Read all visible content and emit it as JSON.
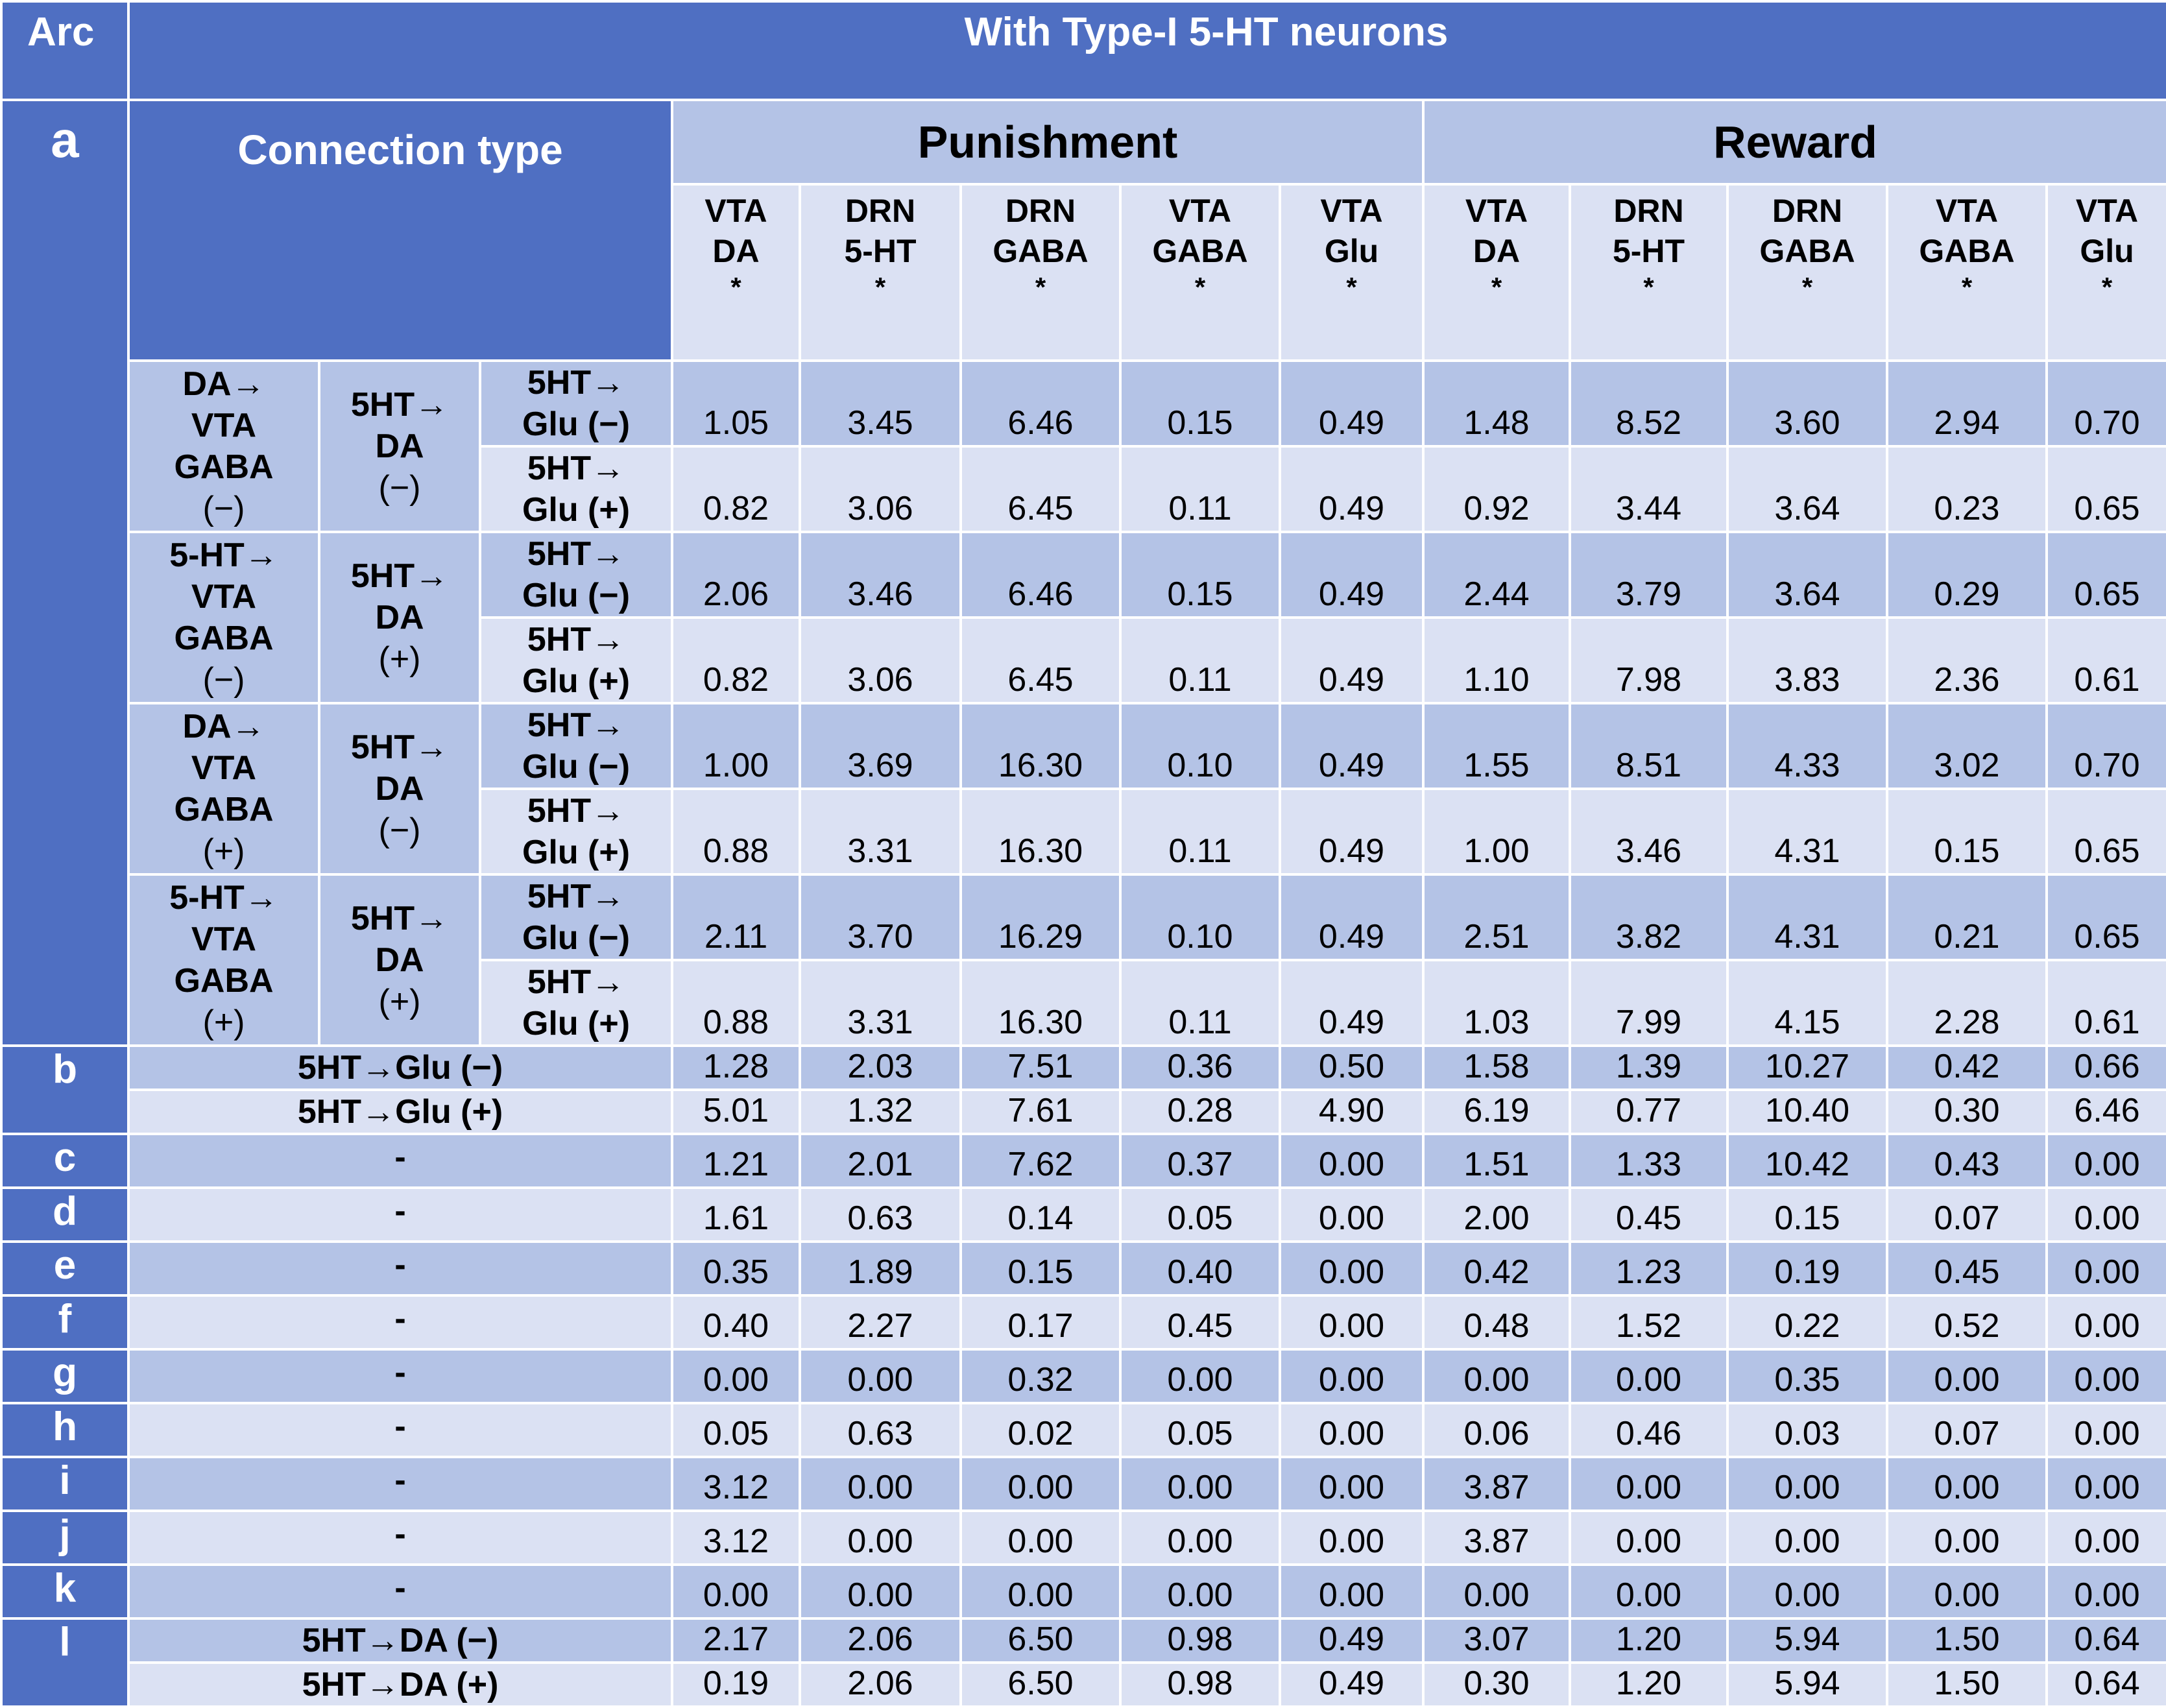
{
  "header": {
    "arc": "Arc",
    "title": "With Type-I 5-HT neurons",
    "section_a": "a",
    "connection_type": "Connection type",
    "punishment": "Punishment",
    "reward": "Reward",
    "columns": [
      {
        "l1": "VTA",
        "l2": "DA",
        "star": "*"
      },
      {
        "l1": "DRN",
        "l2": "5-HT",
        "star": "*"
      },
      {
        "l1": "DRN",
        "l2": "GABA",
        "star": "*"
      },
      {
        "l1": "VTA",
        "l2": "GABA",
        "star": "*"
      },
      {
        "l1": "VTA",
        "l2": "Glu",
        "star": "*"
      },
      {
        "l1": "VTA",
        "l2": "DA",
        "star": "*"
      },
      {
        "l1": "DRN",
        "l2": "5-HT",
        "star": "*"
      },
      {
        "l1": "DRN",
        "l2": "GABA",
        "star": "*"
      },
      {
        "l1": "VTA",
        "l2": "GABA",
        "star": "*"
      },
      {
        "l1": "VTA",
        "l2": "Glu",
        "star": "*"
      }
    ]
  },
  "section_a_groups": [
    {
      "c1": [
        "DA→",
        "VTA",
        "GABA",
        "(−)"
      ],
      "c2": [
        "5HT→",
        "DA",
        "(−)"
      ],
      "rows": [
        {
          "c3": [
            "5HT→",
            "Glu (−)"
          ],
          "values": [
            "1.05",
            "3.45",
            "6.46",
            "0.15",
            "0.49",
            "1.48",
            "8.52",
            "3.60",
            "2.94",
            "0.70"
          ]
        },
        {
          "c3": [
            "5HT→",
            "Glu (+)"
          ],
          "values": [
            "0.82",
            "3.06",
            "6.45",
            "0.11",
            "0.49",
            "0.92",
            "3.44",
            "3.64",
            "0.23",
            "0.65"
          ]
        }
      ]
    },
    {
      "c1": [
        "5-HT→",
        "VTA",
        "GABA",
        "(−)"
      ],
      "c2": [
        "5HT→",
        "DA",
        "(+)"
      ],
      "rows": [
        {
          "c3": [
            "5HT→",
            "Glu (−)"
          ],
          "values": [
            "2.06",
            "3.46",
            "6.46",
            "0.15",
            "0.49",
            "2.44",
            "3.79",
            "3.64",
            "0.29",
            "0.65"
          ]
        },
        {
          "c3": [
            "5HT→",
            "Glu (+)"
          ],
          "values": [
            "0.82",
            "3.06",
            "6.45",
            "0.11",
            "0.49",
            "1.10",
            "7.98",
            "3.83",
            "2.36",
            "0.61"
          ]
        }
      ]
    },
    {
      "c1": [
        "DA→",
        "VTA",
        "GABA",
        "(+)"
      ],
      "c2": [
        "5HT→",
        "DA",
        "(−)"
      ],
      "rows": [
        {
          "c3": [
            "5HT→",
            "Glu (−)"
          ],
          "values": [
            "1.00",
            "3.69",
            "16.30",
            "0.10",
            "0.49",
            "1.55",
            "8.51",
            "4.33",
            "3.02",
            "0.70"
          ]
        },
        {
          "c3": [
            "5HT→",
            "Glu (+)"
          ],
          "values": [
            "0.88",
            "3.31",
            "16.30",
            "0.11",
            "0.49",
            "1.00",
            "3.46",
            "4.31",
            "0.15",
            "0.65"
          ]
        }
      ]
    },
    {
      "c1": [
        "5-HT→",
        "VTA",
        "GABA",
        "(+)"
      ],
      "c2": [
        "5HT→",
        "DA",
        "(+)"
      ],
      "rows": [
        {
          "c3": [
            "5HT→",
            "Glu (−)"
          ],
          "values": [
            "2.11",
            "3.70",
            "16.29",
            "0.10",
            "0.49",
            "2.51",
            "3.82",
            "4.31",
            "0.21",
            "0.65"
          ]
        },
        {
          "c3": [
            "5HT→",
            "Glu (+)"
          ],
          "values": [
            "0.88",
            "3.31",
            "16.30",
            "0.11",
            "0.49",
            "1.03",
            "7.99",
            "4.15",
            "2.28",
            "0.61"
          ]
        }
      ]
    }
  ],
  "section_b": {
    "label": "b",
    "rows": [
      {
        "conn": "5HT→Glu (−)",
        "values": [
          "1.28",
          "2.03",
          "7.51",
          "0.36",
          "0.50",
          "1.58",
          "1.39",
          "10.27",
          "0.42",
          "0.66"
        ]
      },
      {
        "conn": "5HT→Glu (+)",
        "values": [
          "5.01",
          "1.32",
          "7.61",
          "0.28",
          "4.90",
          "6.19",
          "0.77",
          "10.40",
          "0.30",
          "6.46"
        ]
      }
    ]
  },
  "simple_sections": [
    {
      "label": "c",
      "conn": "-",
      "values": [
        "1.21",
        "2.01",
        "7.62",
        "0.37",
        "0.00",
        "1.51",
        "1.33",
        "10.42",
        "0.43",
        "0.00"
      ]
    },
    {
      "label": "d",
      "conn": "-",
      "values": [
        "1.61",
        "0.63",
        "0.14",
        "0.05",
        "0.00",
        "2.00",
        "0.45",
        "0.15",
        "0.07",
        "0.00"
      ]
    },
    {
      "label": "e",
      "conn": "-",
      "values": [
        "0.35",
        "1.89",
        "0.15",
        "0.40",
        "0.00",
        "0.42",
        "1.23",
        "0.19",
        "0.45",
        "0.00"
      ]
    },
    {
      "label": "f",
      "conn": "-",
      "values": [
        "0.40",
        "2.27",
        "0.17",
        "0.45",
        "0.00",
        "0.48",
        "1.52",
        "0.22",
        "0.52",
        "0.00"
      ]
    },
    {
      "label": "g",
      "conn": "-",
      "values": [
        "0.00",
        "0.00",
        "0.32",
        "0.00",
        "0.00",
        "0.00",
        "0.00",
        "0.35",
        "0.00",
        "0.00"
      ]
    },
    {
      "label": "h",
      "conn": "-",
      "values": [
        "0.05",
        "0.63",
        "0.02",
        "0.05",
        "0.00",
        "0.06",
        "0.46",
        "0.03",
        "0.07",
        "0.00"
      ]
    },
    {
      "label": "i",
      "conn": "-",
      "values": [
        "3.12",
        "0.00",
        "0.00",
        "0.00",
        "0.00",
        "3.87",
        "0.00",
        "0.00",
        "0.00",
        "0.00"
      ]
    },
    {
      "label": "j",
      "conn": "-",
      "values": [
        "3.12",
        "0.00",
        "0.00",
        "0.00",
        "0.00",
        "3.87",
        "0.00",
        "0.00",
        "0.00",
        "0.00"
      ]
    },
    {
      "label": "k",
      "conn": "-",
      "values": [
        "0.00",
        "0.00",
        "0.00",
        "0.00",
        "0.00",
        "0.00",
        "0.00",
        "0.00",
        "0.00",
        "0.00"
      ]
    }
  ],
  "section_l": {
    "label": "l",
    "rows": [
      {
        "conn": "5HT→DA (−)",
        "values": [
          "2.17",
          "2.06",
          "6.50",
          "0.98",
          "0.49",
          "3.07",
          "1.20",
          "5.94",
          "1.50",
          "0.64"
        ]
      },
      {
        "conn": "5HT→DA (+)",
        "values": [
          "0.19",
          "2.06",
          "6.50",
          "0.98",
          "0.49",
          "0.30",
          "1.20",
          "5.94",
          "1.50",
          "0.64"
        ]
      }
    ]
  }
}
